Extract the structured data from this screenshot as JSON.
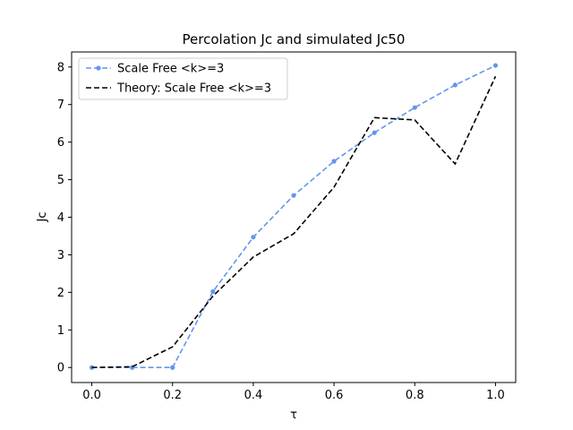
{
  "chart_data": {
    "type": "line",
    "title": "Percolation Jc and simulated Jc50",
    "xlabel": "τ",
    "ylabel": "Jc",
    "xlim": [
      -0.05,
      1.05
    ],
    "ylim": [
      -0.4,
      8.4
    ],
    "xticks": [
      0.0,
      0.2,
      0.4,
      0.6,
      0.8,
      1.0
    ],
    "xtick_labels": [
      "0.0",
      "0.2",
      "0.4",
      "0.6",
      "0.8",
      "1.0"
    ],
    "yticks": [
      0,
      1,
      2,
      3,
      4,
      5,
      6,
      7,
      8
    ],
    "ytick_labels": [
      "0",
      "1",
      "2",
      "3",
      "4",
      "5",
      "6",
      "7",
      "8"
    ],
    "grid": false,
    "legend_position": "top-left",
    "x": [
      0.0,
      0.1,
      0.2,
      0.3,
      0.4,
      0.5,
      0.6,
      0.7,
      0.8,
      0.9,
      1.0
    ],
    "series": [
      {
        "name": "Scale Free <k>=3",
        "color": "#6495ED",
        "style": "dashed",
        "marker": "circle",
        "values": [
          0.0,
          0.0,
          0.0,
          2.02,
          3.47,
          4.58,
          5.49,
          6.25,
          6.92,
          7.52,
          8.04
        ]
      },
      {
        "name": "Theory: Scale Free <k>=3",
        "color": "#000000",
        "style": "dashed",
        "marker": "none",
        "values": [
          0.0,
          0.02,
          0.55,
          1.9,
          2.94,
          3.56,
          4.8,
          6.65,
          6.59,
          5.42,
          7.75
        ]
      }
    ]
  }
}
